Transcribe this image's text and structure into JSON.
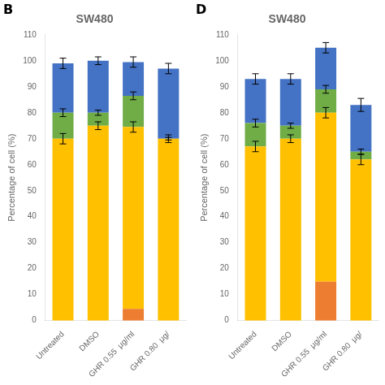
{
  "chart_data": [
    {
      "type": "bar",
      "stacked": true,
      "title": "SW480",
      "annotations": [
        "B"
      ],
      "categories": [
        "Untreated",
        "DMSO",
        "GHR 0.55  μg/ml",
        "GHR 0.80  μg/"
      ],
      "ylabel": "Percentage of cell (%)",
      "ylim": [
        0,
        110
      ],
      "yticks": [
        0,
        10,
        20,
        30,
        40,
        50,
        60,
        70,
        80,
        90,
        100,
        110
      ],
      "grid": false,
      "series": [
        {
          "color": "#ED7D31",
          "values": [
            0.0,
            0.0,
            4.5,
            0.0
          ]
        },
        {
          "color": "#FFC000",
          "values": [
            70.0,
            75.0,
            70.0,
            70.0
          ],
          "errors": [
            2.0,
            1.5,
            2.0,
            1.5
          ]
        },
        {
          "color": "#70AD47",
          "values": [
            10.0,
            5.0,
            12.0,
            0.0
          ],
          "errors": [
            1.5,
            1.0,
            1.5,
            0.5
          ]
        },
        {
          "color": "#4472C4",
          "values": [
            19.0,
            20.0,
            13.0,
            27.0
          ],
          "errors": [
            2.0,
            1.5,
            2.0,
            2.0
          ]
        }
      ]
    },
    {
      "type": "bar",
      "stacked": true,
      "title": "SW480",
      "annotations": [
        "D"
      ],
      "categories": [
        "Untreated",
        "DMSO",
        "GHR 0.55  μg/ml",
        "GHR 0.80  μg/"
      ],
      "ylabel": "Percentage of cell (%)",
      "ylim": [
        0,
        110
      ],
      "yticks": [
        0,
        10,
        20,
        30,
        40,
        50,
        60,
        70,
        80,
        90,
        100,
        110
      ],
      "grid": false,
      "series": [
        {
          "color": "#ED7D31",
          "values": [
            0.0,
            0.0,
            15.0,
            0.0
          ]
        },
        {
          "color": "#FFC000",
          "values": [
            67.0,
            70.0,
            65.0,
            62.0
          ],
          "errors": [
            2.0,
            1.5,
            2.0,
            2.0
          ]
        },
        {
          "color": "#70AD47",
          "values": [
            9.0,
            5.0,
            9.0,
            3.0
          ],
          "errors": [
            1.5,
            1.0,
            1.5,
            1.0
          ]
        },
        {
          "color": "#4472C4",
          "values": [
            17.0,
            18.0,
            16.0,
            18.0
          ],
          "errors": [
            2.0,
            2.0,
            2.0,
            2.5
          ]
        }
      ]
    }
  ]
}
